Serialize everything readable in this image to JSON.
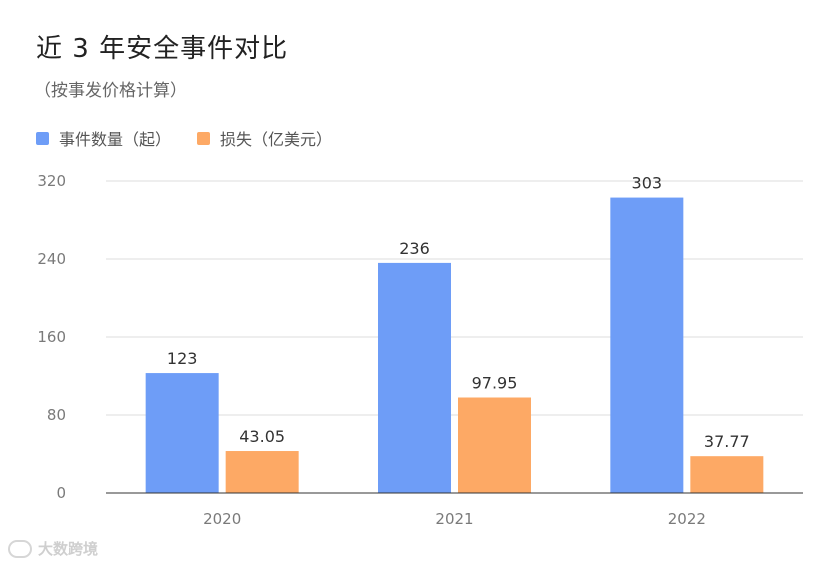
{
  "chart_data": {
    "type": "bar",
    "title": "近 3 年安全事件对比",
    "subtitle": "（按事发价格计算）",
    "categories": [
      "2020",
      "2021",
      "2022"
    ],
    "series": [
      {
        "name": "事件数量（起）",
        "color": "#6e9df7",
        "values": [
          123,
          236,
          303
        ],
        "labels": [
          "123",
          "236",
          "303"
        ]
      },
      {
        "name": "损失（亿美元）",
        "color": "#fda965",
        "values": [
          43.05,
          97.95,
          37.77
        ],
        "labels": [
          "43.05",
          "97.95",
          "37.77"
        ]
      }
    ],
    "ylim": [
      0,
      320
    ],
    "yticks": [
      0,
      80,
      160,
      240,
      320
    ],
    "grid": true,
    "legend": "top-left"
  },
  "watermark": {
    "text": "大数跨境"
  }
}
